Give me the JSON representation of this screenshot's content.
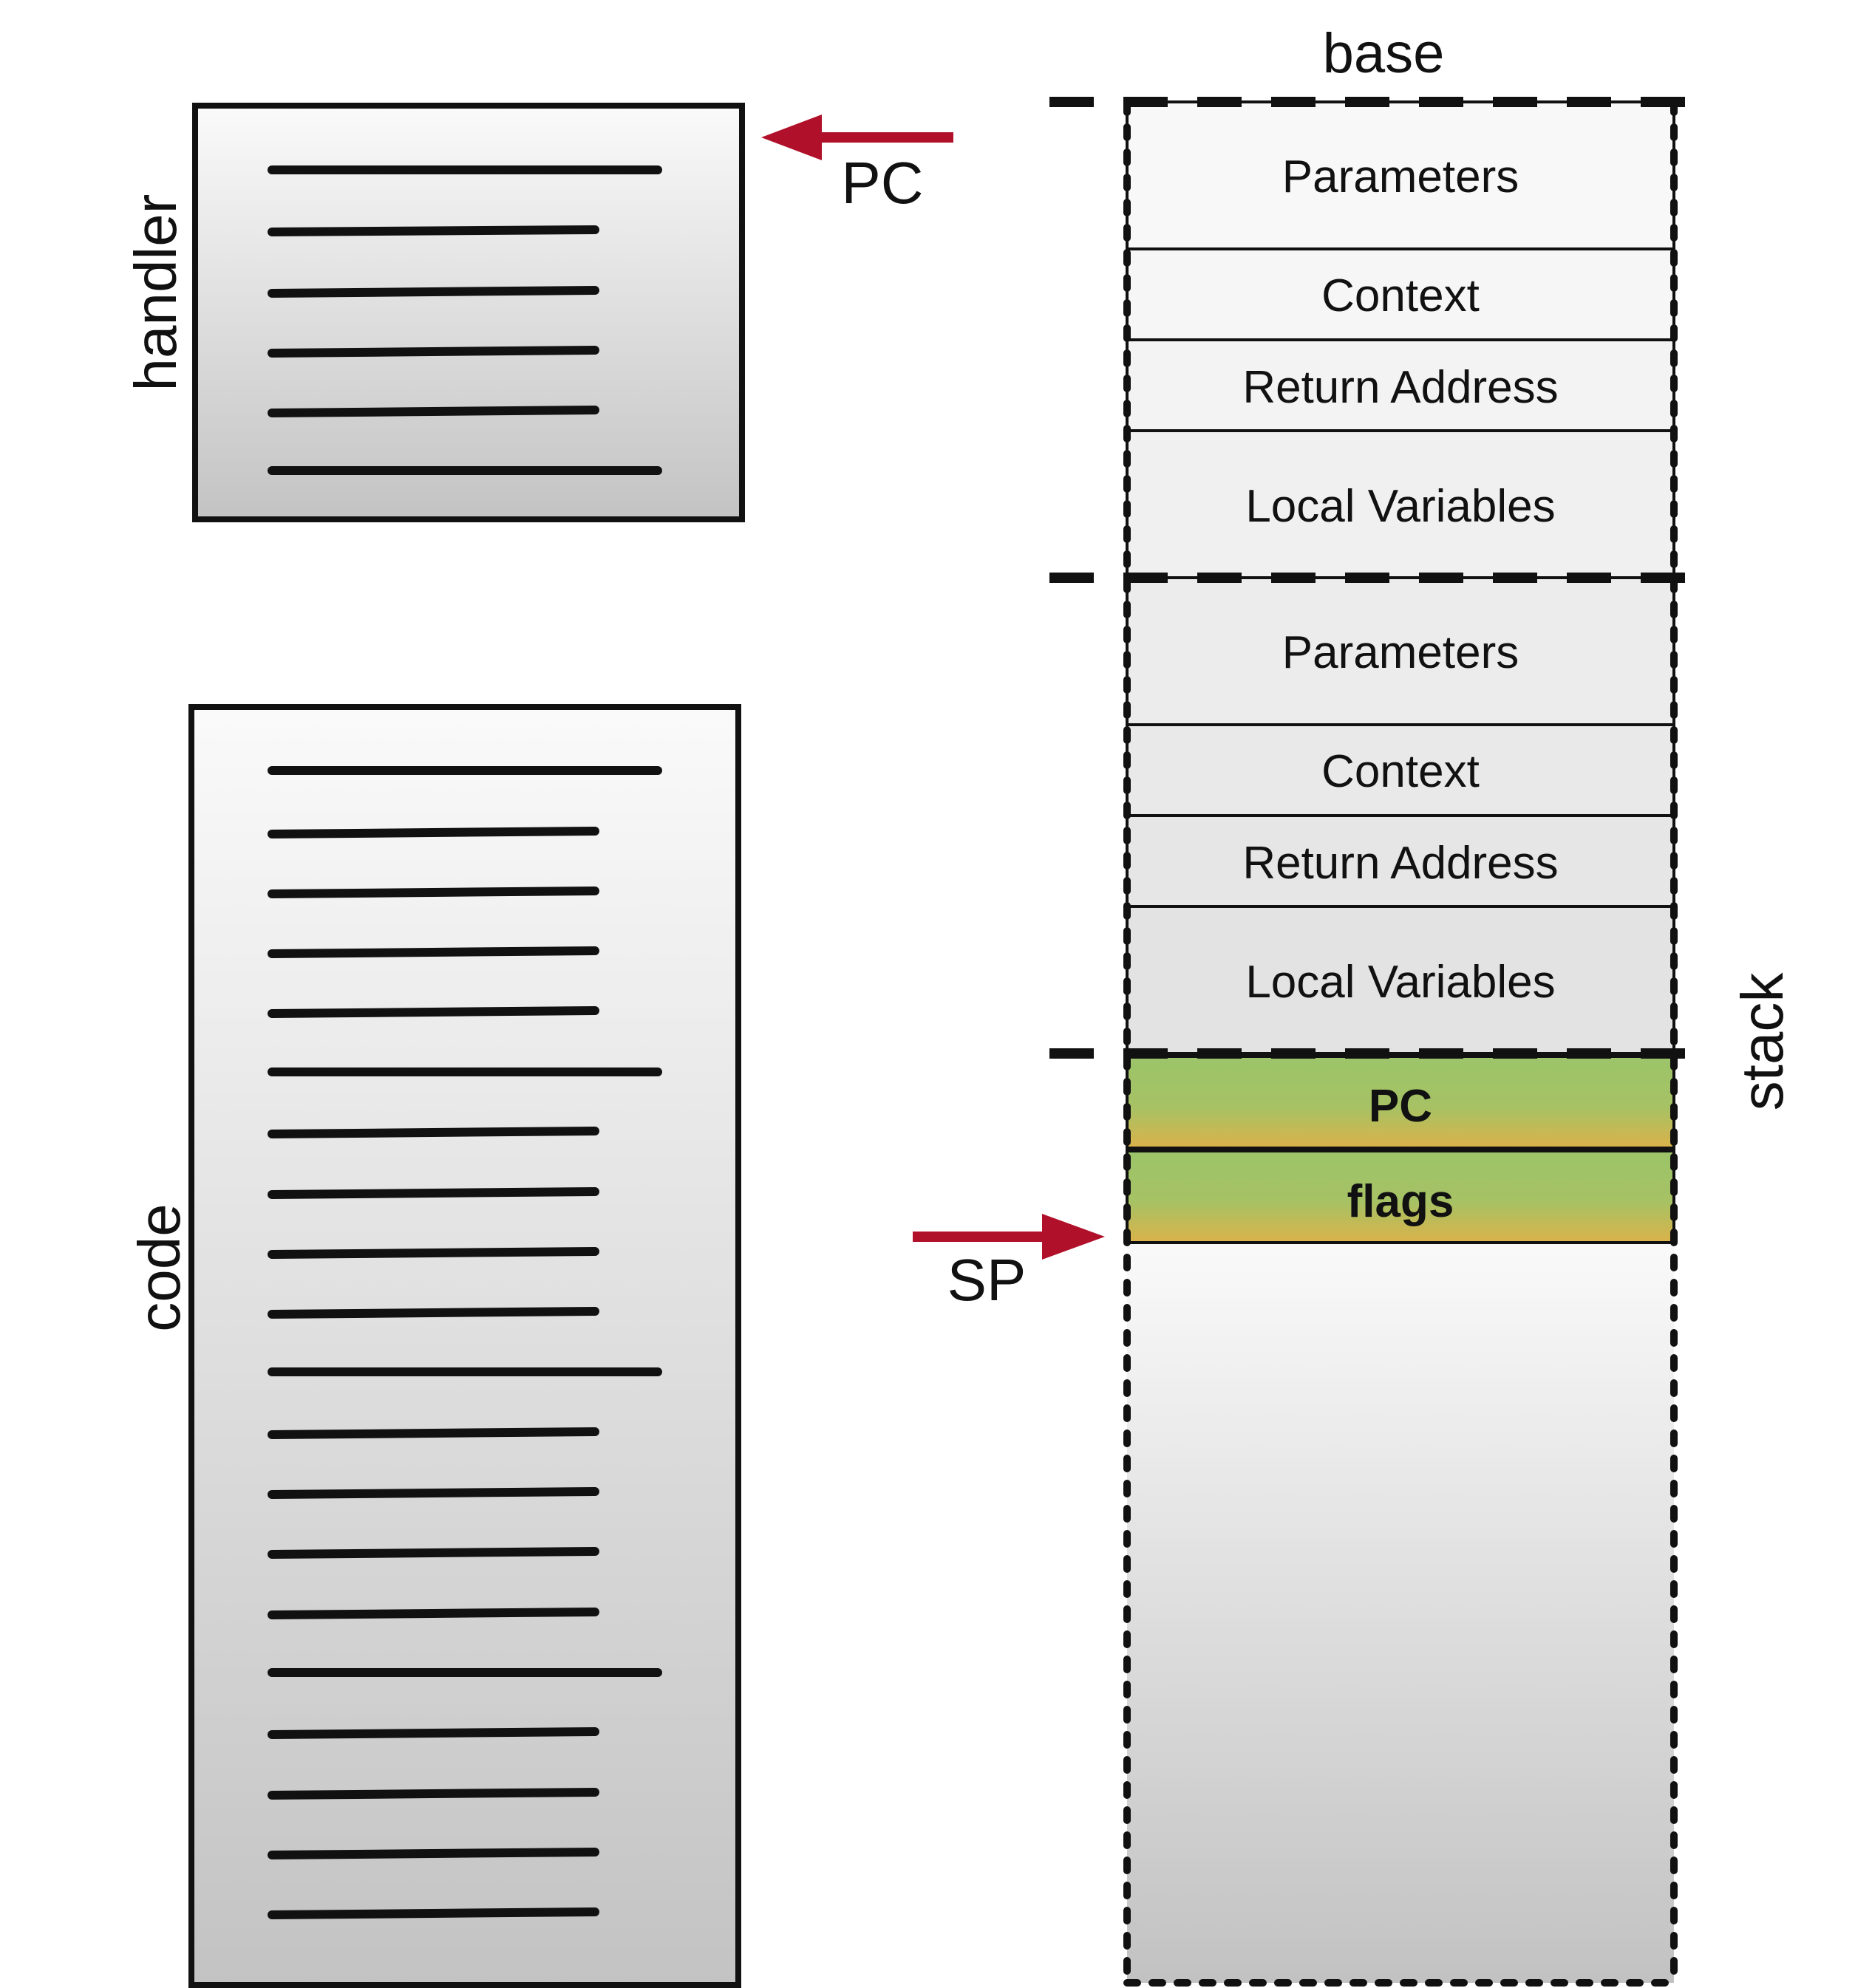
{
  "labels": {
    "handler": "handler",
    "code": "code",
    "stack": "stack",
    "base": "base",
    "pc_pointer": "PC",
    "sp_pointer": "SP"
  },
  "stack_frames": [
    {
      "cells": [
        "Parameters",
        "Context",
        "Return Address",
        "Local Variables"
      ]
    },
    {
      "cells": [
        "Parameters",
        "Context",
        "Return Address",
        "Local Variables"
      ]
    }
  ],
  "pushed": [
    "PC",
    "flags"
  ],
  "colors": {
    "arrow": "#b0102a",
    "pushed_top": "#9cc46a",
    "pushed_bottom": "#d9b34a",
    "box_top": "#fafafa",
    "box_bottom": "#c4c4c4"
  }
}
